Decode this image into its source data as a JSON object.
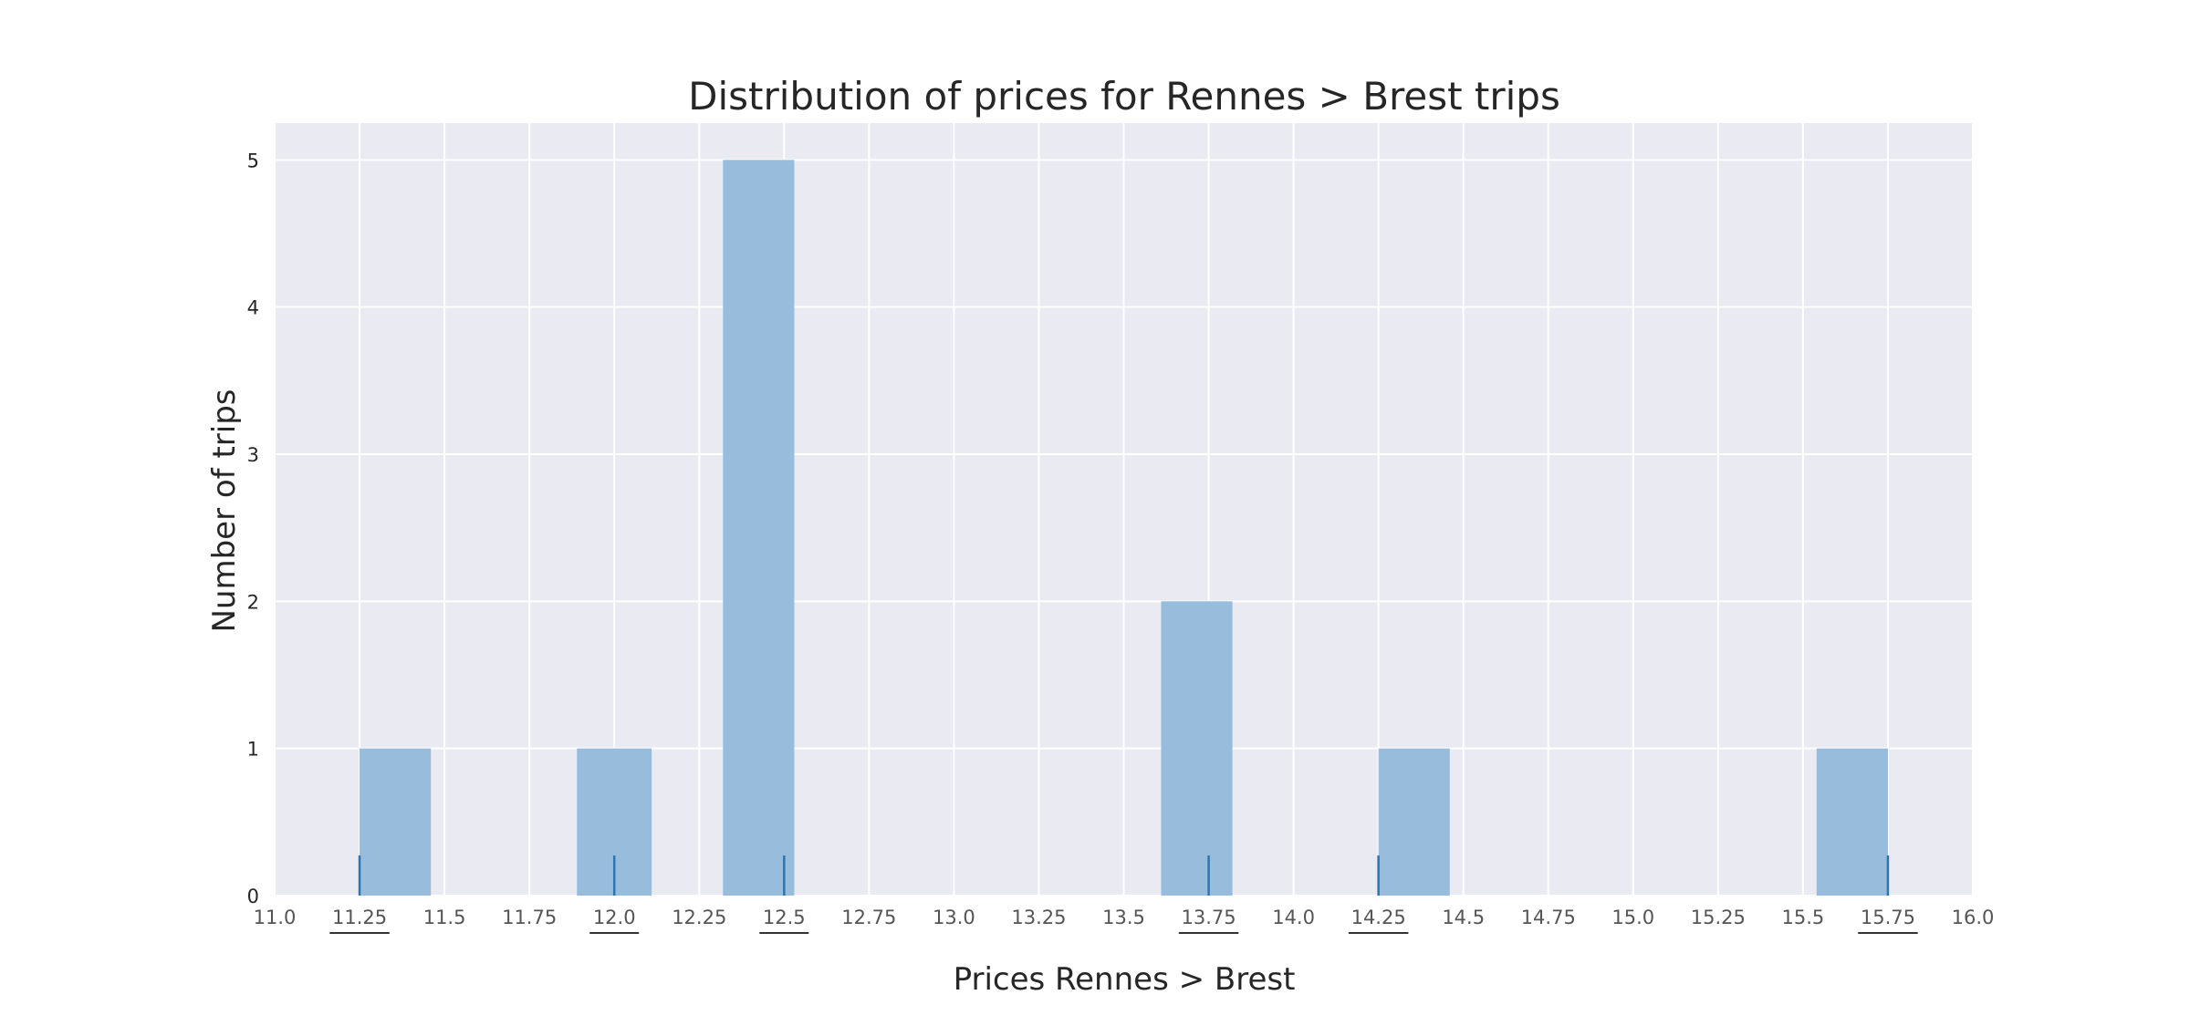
{
  "chart_data": {
    "type": "bar",
    "title": "Distribution of prices for Rennes > Brest trips",
    "xlabel": "Prices Rennes > Brest",
    "ylabel": "Number of trips",
    "xlim": [
      11.0,
      16.0
    ],
    "ylim": [
      0,
      5.25
    ],
    "grid": true,
    "legend": "none",
    "x_ticks": [
      "11.0",
      "11.25",
      "11.5",
      "11.75",
      "12.0",
      "12.25",
      "12.5",
      "12.75",
      "13.0",
      "13.25",
      "13.5",
      "13.75",
      "14.0",
      "14.25",
      "14.5",
      "14.75",
      "15.0",
      "15.25",
      "15.5",
      "15.75",
      "16.0"
    ],
    "underlined_x_ticks": [
      "11.25",
      "12.0",
      "12.5",
      "13.75",
      "14.25",
      "15.75"
    ],
    "y_ticks": [
      "0",
      "1",
      "2",
      "3",
      "4",
      "5"
    ],
    "bins": [
      {
        "x0": 11.25,
        "x1": 11.46,
        "count": 1
      },
      {
        "x0": 11.89,
        "x1": 12.11,
        "count": 1
      },
      {
        "x0": 12.32,
        "x1": 12.53,
        "count": 5
      },
      {
        "x0": 13.61,
        "x1": 13.82,
        "count": 2
      },
      {
        "x0": 14.25,
        "x1": 14.46,
        "count": 1
      },
      {
        "x0": 15.54,
        "x1": 15.75,
        "count": 1
      }
    ],
    "rug": [
      11.25,
      12.0,
      12.5,
      13.75,
      14.25,
      15.75
    ],
    "colors": {
      "background": "#EAEAF2",
      "grid": "#FFFFFF",
      "bar": "#98BCDC",
      "rug": "#2E75B0"
    }
  }
}
